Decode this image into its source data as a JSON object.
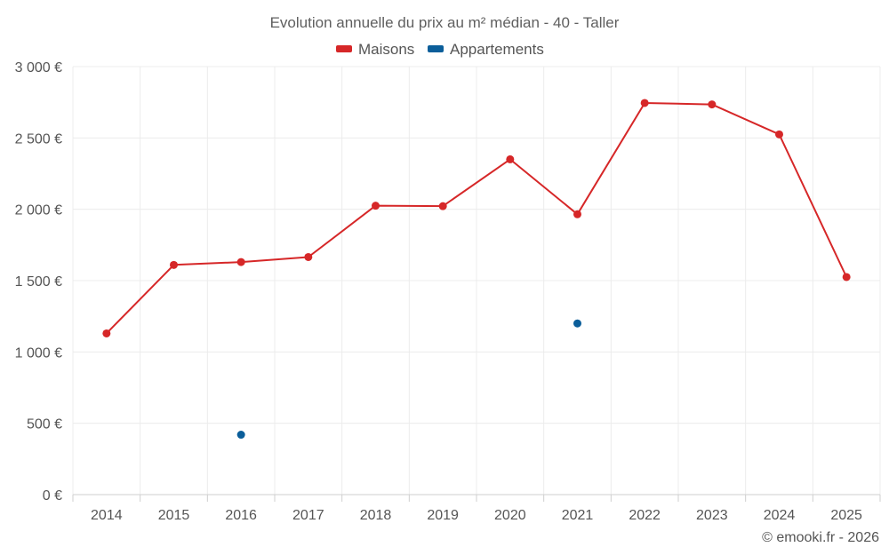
{
  "chart_data": {
    "type": "line",
    "title": "Evolution annuelle du prix au m² médian - 40 - Taller",
    "categories": [
      "2014",
      "2015",
      "2016",
      "2017",
      "2018",
      "2019",
      "2020",
      "2021",
      "2022",
      "2023",
      "2024",
      "2025"
    ],
    "series": [
      {
        "name": "Maisons",
        "color": "#d62728",
        "values": [
          1130,
          1610,
          1630,
          1665,
          2025,
          2022,
          2350,
          1965,
          2745,
          2735,
          2525,
          1525
        ]
      },
      {
        "name": "Appartements",
        "color": "#0b5e9a",
        "values": [
          null,
          null,
          420,
          null,
          null,
          null,
          null,
          1200,
          null,
          null,
          null,
          null
        ]
      }
    ],
    "ylim": [
      0,
      3000
    ],
    "yticks": [
      0,
      500,
      1000,
      1500,
      2000,
      2500,
      3000
    ],
    "ytick_labels": [
      "0 €",
      "500 €",
      "1 000 €",
      "1 500 €",
      "2 000 €",
      "2 500 €",
      "3 000 €"
    ],
    "xlabel": "",
    "ylabel": "",
    "legend_position": "top-center",
    "grid": true
  },
  "credit": "© emooki.fr - 2026"
}
